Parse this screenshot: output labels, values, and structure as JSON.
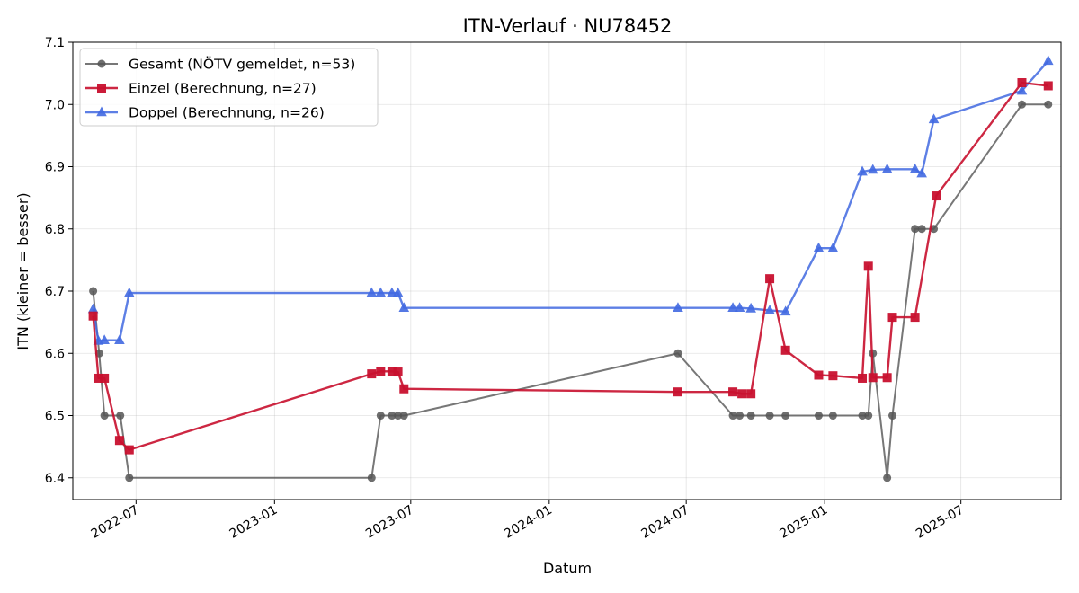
{
  "chart_data": {
    "type": "line",
    "title": "ITN-Verlauf · NU78452",
    "xlabel": "Datum",
    "ylabel": "ITN  (kleiner = besser)",
    "xlim": [
      "2022-04-08",
      "2025-11-11"
    ],
    "ylim": [
      6.365,
      7.1
    ],
    "grid": true,
    "legend_position": "top-left",
    "x_ticks": [
      "2022-07",
      "2023-01",
      "2023-07",
      "2024-01",
      "2024-07",
      "2025-01",
      "2025-07"
    ],
    "x_tick_dates": [
      "2022-07-01",
      "2023-01-01",
      "2023-07-01",
      "2024-01-01",
      "2024-07-01",
      "2025-01-01",
      "2025-07-01"
    ],
    "y_ticks": [
      6.4,
      6.5,
      6.6,
      6.7,
      6.8,
      6.9,
      7.0,
      7.1
    ],
    "y_tick_labels": [
      "6.4",
      "6.5",
      "6.6",
      "6.7",
      "6.8",
      "6.9",
      "7.0",
      "7.1"
    ],
    "series": [
      {
        "name": "Gesamt (NÖTV gemeldet, n=53)",
        "color": "#555555",
        "marker": "circle",
        "points": [
          [
            "2022-05-05",
            6.7
          ],
          [
            "2022-05-13",
            6.6
          ],
          [
            "2022-05-20",
            6.5
          ],
          [
            "2022-06-10",
            6.5
          ],
          [
            "2022-06-22",
            6.4
          ],
          [
            "2023-05-10",
            6.4
          ],
          [
            "2023-05-22",
            6.5
          ],
          [
            "2023-06-06",
            6.5
          ],
          [
            "2023-06-14",
            6.5
          ],
          [
            "2023-06-22",
            6.5
          ],
          [
            "2024-06-20",
            6.6
          ],
          [
            "2024-09-01",
            6.5
          ],
          [
            "2024-09-10",
            6.5
          ],
          [
            "2024-09-25",
            6.5
          ],
          [
            "2024-10-20",
            6.5
          ],
          [
            "2024-11-10",
            6.5
          ],
          [
            "2024-12-24",
            6.5
          ],
          [
            "2025-01-12",
            6.5
          ],
          [
            "2025-02-20",
            6.5
          ],
          [
            "2025-02-28",
            6.5
          ],
          [
            "2025-03-06",
            6.6
          ],
          [
            "2025-03-25",
            6.4
          ],
          [
            "2025-04-01",
            6.5
          ],
          [
            "2025-05-01",
            6.8
          ],
          [
            "2025-05-10",
            6.8
          ],
          [
            "2025-05-26",
            6.8
          ],
          [
            "2025-09-20",
            7.0
          ],
          [
            "2025-10-25",
            7.0
          ]
        ]
      },
      {
        "name": "Einzel (Berechnung, n=27)",
        "color": "#c8102e",
        "marker": "square",
        "points": [
          [
            "2022-05-05",
            6.66
          ],
          [
            "2022-05-12",
            6.56
          ],
          [
            "2022-05-20",
            6.56
          ],
          [
            "2022-06-09",
            6.46
          ],
          [
            "2022-06-22",
            6.445
          ],
          [
            "2023-05-10",
            6.567
          ],
          [
            "2023-05-22",
            6.571
          ],
          [
            "2023-06-06",
            6.571
          ],
          [
            "2023-06-14",
            6.57
          ],
          [
            "2023-06-22",
            6.543
          ],
          [
            "2024-06-20",
            6.538
          ],
          [
            "2024-09-01",
            6.538
          ],
          [
            "2024-09-13",
            6.535
          ],
          [
            "2024-09-25",
            6.535
          ],
          [
            "2024-10-20",
            6.72
          ],
          [
            "2024-11-10",
            6.605
          ],
          [
            "2024-12-24",
            6.565
          ],
          [
            "2025-01-12",
            6.564
          ],
          [
            "2025-02-20",
            6.56
          ],
          [
            "2025-02-28",
            6.74
          ],
          [
            "2025-03-06",
            6.561
          ],
          [
            "2025-03-25",
            6.561
          ],
          [
            "2025-04-01",
            6.658
          ],
          [
            "2025-05-01",
            6.658
          ],
          [
            "2025-05-29",
            6.853
          ],
          [
            "2025-09-20",
            7.035
          ],
          [
            "2025-10-25",
            7.03
          ]
        ]
      },
      {
        "name": "Doppel (Berechnung, n=26)",
        "color": "#4169e1",
        "marker": "triangle",
        "points": [
          [
            "2022-05-05",
            6.671
          ],
          [
            "2022-05-12",
            6.62
          ],
          [
            "2022-05-20",
            6.621
          ],
          [
            "2022-06-09",
            6.621
          ],
          [
            "2022-06-22",
            6.697
          ],
          [
            "2023-05-10",
            6.697
          ],
          [
            "2023-05-22",
            6.697
          ],
          [
            "2023-06-06",
            6.697
          ],
          [
            "2023-06-14",
            6.697
          ],
          [
            "2023-06-22",
            6.673
          ],
          [
            "2024-06-20",
            6.673
          ],
          [
            "2024-09-01",
            6.673
          ],
          [
            "2024-09-10",
            6.673
          ],
          [
            "2024-09-25",
            6.672
          ],
          [
            "2024-10-20",
            6.669
          ],
          [
            "2024-11-10",
            6.667
          ],
          [
            "2024-12-24",
            6.769
          ],
          [
            "2025-01-12",
            6.769
          ],
          [
            "2025-02-20",
            6.892
          ],
          [
            "2025-03-06",
            6.895
          ],
          [
            "2025-03-25",
            6.896
          ],
          [
            "2025-05-01",
            6.896
          ],
          [
            "2025-05-10",
            6.889
          ],
          [
            "2025-05-26",
            6.976
          ],
          [
            "2025-09-20",
            7.022
          ],
          [
            "2025-10-25",
            7.07
          ]
        ]
      }
    ]
  }
}
